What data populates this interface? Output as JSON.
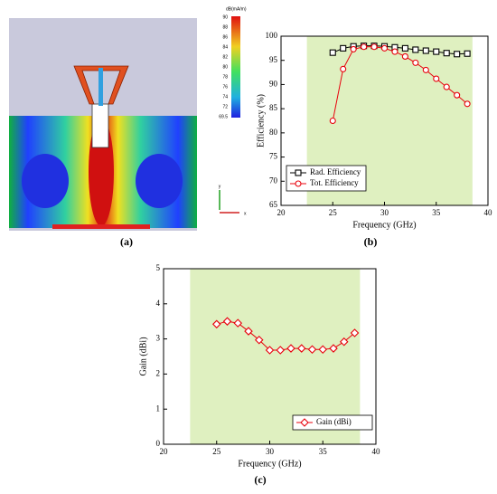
{
  "labels": [
    "(a)",
    "(b)",
    "(c)"
  ],
  "field_plot": {
    "colorbar_title": "dB(mA/m)",
    "colorbar_labels": [
      "90",
      "88",
      "86",
      "84",
      "82",
      "80",
      "78",
      "76",
      "74",
      "72",
      "69.5"
    ],
    "axis_labels": [
      "y",
      "x"
    ]
  },
  "chart_data": [
    {
      "type": "line",
      "x_label": "Frequency (GHz)",
      "y_label": "Efficiency (%)",
      "xlim": [
        20,
        40
      ],
      "xticks": [
        20,
        25,
        30,
        35,
        40
      ],
      "ylim": [
        65,
        100
      ],
      "yticks": [
        65,
        70,
        75,
        80,
        85,
        90,
        95,
        100
      ],
      "shaded_region": [
        22.5,
        38.5
      ],
      "shade_color": "#dff0c0",
      "legend": "lower left",
      "x": [
        25,
        26,
        27,
        28,
        29,
        30,
        31,
        32,
        33,
        34,
        35,
        36,
        37,
        38
      ],
      "series": [
        {
          "name": "Rad. Efficiency",
          "color": "#000000",
          "marker": "square",
          "values": [
            96.6,
            97.5,
            97.9,
            98,
            98,
            97.9,
            97.7,
            97.5,
            97.2,
            97,
            96.8,
            96.5,
            96.3,
            96.4
          ]
        },
        {
          "name": "Tot. Efficiency",
          "color": "#e8000b",
          "marker": "circle",
          "values": [
            82.5,
            93.2,
            97.3,
            97.8,
            97.8,
            97.5,
            96.8,
            95.8,
            94.5,
            93,
            91.2,
            89.5,
            87.8,
            86
          ]
        }
      ]
    },
    {
      "type": "line",
      "x_label": "Frequency (GHz)",
      "y_label": "Gain (dBi)",
      "xlim": [
        20,
        40
      ],
      "xticks": [
        20,
        25,
        30,
        35,
        40
      ],
      "ylim": [
        0,
        5
      ],
      "yticks": [
        0,
        1,
        2,
        3,
        4,
        5
      ],
      "shaded_region": [
        22.5,
        38.5
      ],
      "shade_color": "#dff0c0",
      "legend": "lower right",
      "x": [
        25,
        26,
        27,
        28,
        29,
        30,
        31,
        32,
        33,
        34,
        35,
        36,
        37,
        38
      ],
      "series": [
        {
          "name": "Gain (dBi)",
          "color": "#e8000b",
          "marker": "diamond",
          "values": [
            3.42,
            3.5,
            3.45,
            3.22,
            2.97,
            2.68,
            2.68,
            2.73,
            2.73,
            2.7,
            2.7,
            2.73,
            2.92,
            3.17
          ]
        }
      ]
    }
  ]
}
